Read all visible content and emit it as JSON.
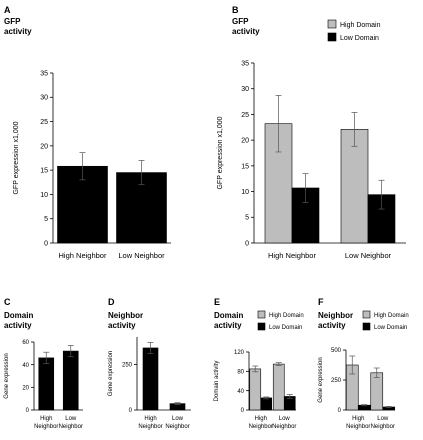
{
  "panels": [
    {
      "letter": "A",
      "title_line1": "GFP",
      "title_line2": "activity"
    },
    {
      "letter": "B",
      "title_line1": "GFP",
      "title_line2": "activity"
    },
    {
      "letter": "C",
      "title_line1": "Domain",
      "title_line2": "activity"
    },
    {
      "letter": "D",
      "title_line1": "Neighbor",
      "title_line2": "activity"
    },
    {
      "letter": "E",
      "title_line1": "Domain",
      "title_line2": "activity"
    },
    {
      "letter": "F",
      "title_line1": "Neighbor",
      "title_line2": "activity"
    }
  ],
  "colors": {
    "black": "#000000",
    "gray": "#bdbdbd",
    "axis": "#000000"
  },
  "chart_data": [
    {
      "id": "A",
      "type": "bar",
      "ylabel": "GFP expression x1,000",
      "categories": [
        [
          "High Neighbor"
        ],
        [
          "Low Neighbor"
        ]
      ],
      "ylim": [
        0,
        35
      ],
      "yticks": [
        0,
        5,
        10,
        15,
        20,
        25,
        30,
        35
      ],
      "series": [
        {
          "values": [
            15.8,
            14.5
          ],
          "errors": [
            2.8,
            2.5
          ],
          "color": "#000000"
        }
      ],
      "legend": []
    },
    {
      "id": "B",
      "type": "bar",
      "ylabel": "GFP expression x1,000",
      "categories": [
        [
          "High Neighbor"
        ],
        [
          "Low Neighbor"
        ]
      ],
      "ylim": [
        0,
        35
      ],
      "yticks": [
        0,
        5,
        10,
        15,
        20,
        25,
        30,
        35
      ],
      "series": [
        {
          "name": "High Domain",
          "values": [
            23.2,
            22.1
          ],
          "errors": [
            5.5,
            3.3
          ],
          "color": "#bdbdbd"
        },
        {
          "name": "Low Domain",
          "values": [
            10.7,
            9.4
          ],
          "errors": [
            2.8,
            2.8
          ],
          "color": "#000000"
        }
      ],
      "legend": [
        "High Domain",
        "Low Domain"
      ]
    },
    {
      "id": "C",
      "type": "bar",
      "ylabel": "Gene expression",
      "categories": [
        [
          "High",
          "Neighbor"
        ],
        [
          "Low",
          "Neighbor"
        ]
      ],
      "ylim": [
        0,
        60
      ],
      "yticks": [
        0,
        20,
        40,
        60
      ],
      "series": [
        {
          "values": [
            46,
            52
          ],
          "errors": [
            5,
            5
          ],
          "color": "#000000"
        }
      ],
      "legend": []
    },
    {
      "id": "D",
      "type": "bar",
      "ylabel": "Gene expression",
      "categories": [
        [
          "High",
          "Neighbor"
        ],
        [
          "Low",
          "Neighbor"
        ]
      ],
      "ylim": [
        0,
        400
      ],
      "yticks": [
        0,
        250
      ],
      "series": [
        {
          "values": [
            340,
            35
          ],
          "errors": [
            30,
            5
          ],
          "color": "#000000"
        }
      ],
      "legend": []
    },
    {
      "id": "E",
      "type": "bar",
      "ylabel": "Domain activity",
      "categories": [
        [
          "High",
          "Neighbor"
        ],
        [
          "Low",
          "Neighbor"
        ]
      ],
      "ylim": [
        0,
        120
      ],
      "yticks": [
        0,
        40,
        80,
        120
      ],
      "series": [
        {
          "name": "High Domain",
          "values": [
            85,
            95
          ],
          "errors": [
            6,
            3
          ],
          "color": "#bdbdbd"
        },
        {
          "name": "Low Domain",
          "values": [
            25,
            28
          ],
          "errors": [
            2,
            4
          ],
          "color": "#000000"
        }
      ],
      "legend": [
        "High Domain",
        "Low Domain"
      ]
    },
    {
      "id": "F",
      "type": "bar",
      "ylabel": "Gene expression",
      "categories": [
        [
          "High",
          "Neighbor"
        ],
        [
          "Low",
          "Neighbor"
        ]
      ],
      "ylim": [
        0,
        500
      ],
      "yticks": [
        0,
        250,
        500
      ],
      "series": [
        {
          "name": "High Domain",
          "values": [
            375,
            310
          ],
          "errors": [
            75,
            40
          ],
          "color": "#bdbdbd"
        },
        {
          "name": "Low Domain",
          "values": [
            40,
            25
          ],
          "errors": [
            5,
            5
          ],
          "color": "#000000"
        }
      ],
      "legend": [
        "High Domain",
        "Low Domain"
      ]
    }
  ]
}
